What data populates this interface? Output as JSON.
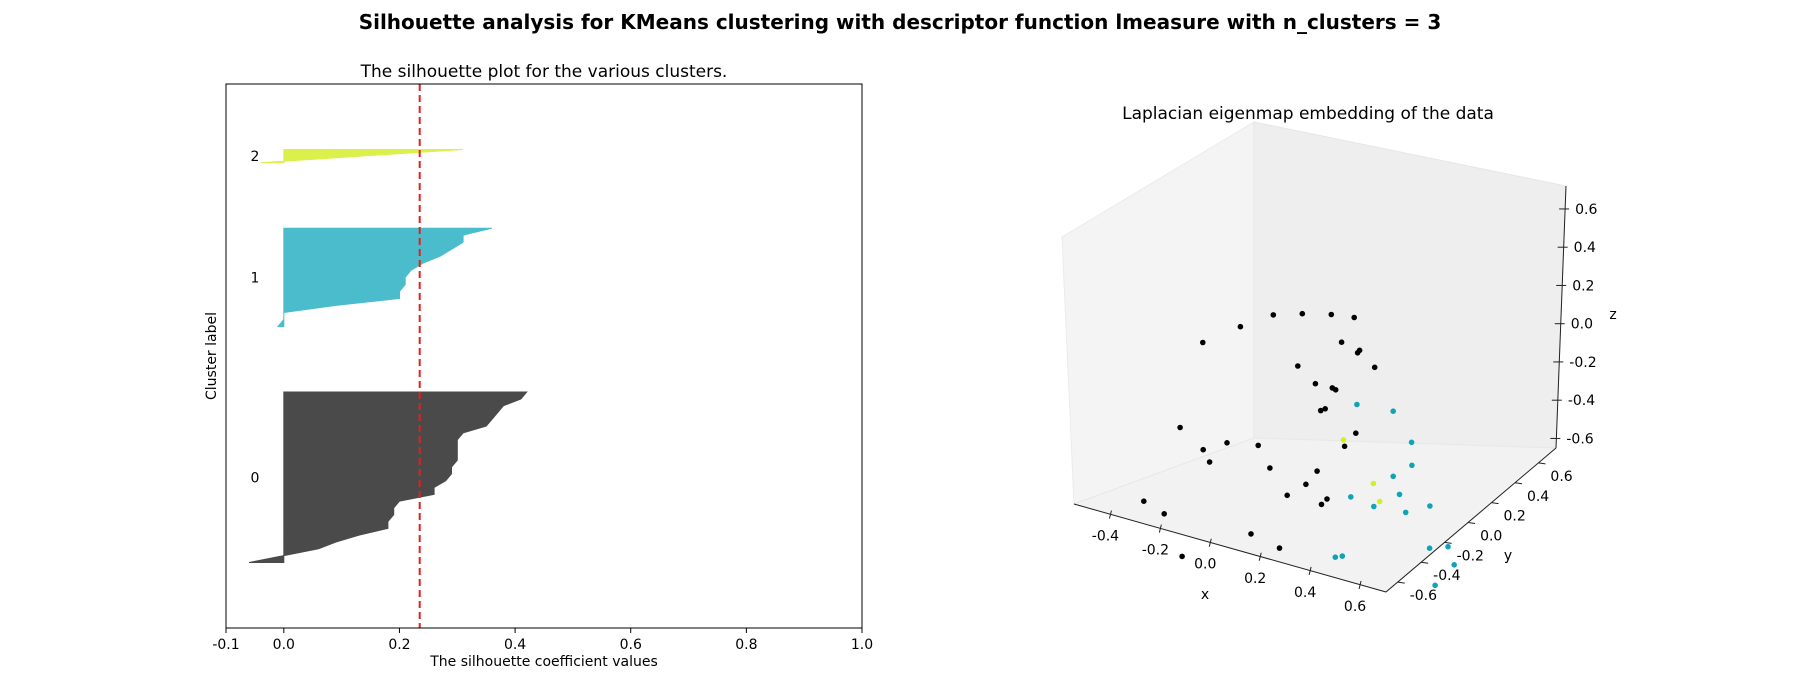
{
  "figure": {
    "suptitle": "Silhouette analysis for KMeans clustering with descriptor function lmeasure with n_clusters = 3"
  },
  "chart_data": [
    {
      "type": "area",
      "title": "The silhouette plot for the various clusters.",
      "xlabel": "The silhouette coefficient values",
      "ylabel": "Cluster label",
      "xlim": [
        -0.1,
        1.0
      ],
      "xticks": [
        "-0.1",
        "0.0",
        "0.2",
        "0.4",
        "0.6",
        "0.8",
        "1.0"
      ],
      "average_silhouette_score": 0.235,
      "average_line_color": "#e32020",
      "clusters": [
        {
          "label": "0",
          "color": "#4a4a4a",
          "sorted_silhouette_values": [
            0.42,
            0.41,
            0.38,
            0.37,
            0.36,
            0.35,
            0.31,
            0.3,
            0.3,
            0.3,
            0.3,
            0.29,
            0.29,
            0.28,
            0.26,
            0.26,
            0.2,
            0.19,
            0.19,
            0.18,
            0.18,
            0.13,
            0.09,
            0.06,
            0.0,
            -0.06
          ]
        },
        {
          "label": "1",
          "color": "#4bbccc",
          "sorted_silhouette_values": [
            0.36,
            0.31,
            0.31,
            0.29,
            0.27,
            0.24,
            0.22,
            0.21,
            0.21,
            0.2,
            0.2,
            0.09,
            0.0,
            0.0,
            -0.01
          ]
        },
        {
          "label": "2",
          "color": "#dbf04b",
          "sorted_silhouette_values": [
            0.31,
            -0.04
          ]
        }
      ]
    },
    {
      "type": "scatter",
      "title": "Laplacian eigenmap embedding of the data",
      "xlabel": "x",
      "ylabel": "y",
      "zlabel": "z",
      "xlim": [
        -0.55,
        0.7
      ],
      "ylim": [
        -0.7,
        0.75
      ],
      "zlim": [
        -0.65,
        0.72
      ],
      "xticks": [
        "-0.4",
        "-0.2",
        "0.0",
        "0.2",
        "0.4",
        "0.6"
      ],
      "yticks": [
        "-0.6",
        "-0.4",
        "-0.2",
        "0.0",
        "0.2",
        "0.4",
        "0.6"
      ],
      "zticks": [
        "-0.6",
        "-0.4",
        "-0.2",
        "0.0",
        "0.2",
        "0.4",
        "0.6"
      ],
      "series": [
        {
          "color": "#000000",
          "points": [
            {
              "x": -0.34,
              "y": -0.2,
              "z": 0.42
            },
            {
              "x": -0.27,
              "y": -0.03,
              "z": 0.44
            },
            {
              "x": -0.2,
              "y": 0.1,
              "z": 0.46
            },
            {
              "x": -0.13,
              "y": 0.2,
              "z": 0.44
            },
            {
              "x": -0.06,
              "y": 0.3,
              "z": 0.41
            },
            {
              "x": 0.0,
              "y": 0.37,
              "z": 0.38
            },
            {
              "x": -0.46,
              "y": -0.4,
              "z": -0.35
            },
            {
              "x": -0.4,
              "y": -0.35,
              "z": -0.42
            },
            {
              "x": -0.3,
              "y": -0.25,
              "z": -0.1
            },
            {
              "x": -0.25,
              "y": -0.3,
              "z": -0.12
            },
            {
              "x": -0.22,
              "y": -0.22,
              "z": -0.05
            },
            {
              "x": -0.15,
              "y": -0.1,
              "z": -0.1
            },
            {
              "x": -0.35,
              "y": -0.35,
              "z": 0.05
            },
            {
              "x": -0.1,
              "y": -0.1,
              "z": -0.2
            },
            {
              "x": -0.05,
              "y": -0.05,
              "z": -0.35
            },
            {
              "x": 0.0,
              "y": 0.0,
              "z": -0.3
            },
            {
              "x": 0.02,
              "y": 0.05,
              "z": -0.25
            },
            {
              "x": 0.05,
              "y": 0.08,
              "z": -0.4
            },
            {
              "x": -0.12,
              "y": -0.2,
              "z": -0.5
            },
            {
              "x": -0.3,
              "y": -0.4,
              "z": -0.58
            },
            {
              "x": -0.05,
              "y": -0.1,
              "z": -0.6
            },
            {
              "x": 0.02,
              "y": 0.1,
              "z": 0.05
            },
            {
              "x": 0.05,
              "y": 0.12,
              "z": 0.15
            },
            {
              "x": 0.0,
              "y": 0.05,
              "z": 0.2
            },
            {
              "x": -0.05,
              "y": 0.0,
              "z": 0.3
            },
            {
              "x": 0.0,
              "y": 0.2,
              "z": 0.1
            },
            {
              "x": 0.08,
              "y": 0.15,
              "z": -0.15
            },
            {
              "x": 0.1,
              "y": 0.2,
              "z": -0.1
            },
            {
              "x": -0.02,
              "y": 0.15,
              "z": 0.0
            },
            {
              "x": 0.05,
              "y": 0.3,
              "z": 0.25
            },
            {
              "x": 0.08,
              "y": 0.25,
              "z": 0.3
            },
            {
              "x": 0.03,
              "y": 0.2,
              "z": 0.35
            },
            {
              "x": 0.12,
              "y": 0.3,
              "z": 0.2
            },
            {
              "x": 0.02,
              "y": 0.1,
              "z": -0.45
            }
          ]
        },
        {
          "color": "#0fa3b8",
          "points": [
            {
              "x": 0.1,
              "y": 0.2,
              "z": 0.05
            },
            {
              "x": 0.2,
              "y": 0.3,
              "z": 0.0
            },
            {
              "x": 0.3,
              "y": 0.1,
              "z": -0.2
            },
            {
              "x": 0.35,
              "y": 0.05,
              "z": -0.25
            },
            {
              "x": 0.4,
              "y": 0.0,
              "z": -0.3
            },
            {
              "x": 0.45,
              "y": 0.1,
              "z": -0.3
            },
            {
              "x": 0.5,
              "y": 0.0,
              "z": -0.45
            },
            {
              "x": 0.55,
              "y": 0.05,
              "z": -0.45
            },
            {
              "x": 0.6,
              "y": 0.0,
              "z": -0.5
            },
            {
              "x": 0.55,
              "y": -0.05,
              "z": -0.6
            },
            {
              "x": 0.2,
              "y": -0.1,
              "z": -0.55
            },
            {
              "x": 0.15,
              "y": -0.05,
              "z": -0.6
            },
            {
              "x": 0.25,
              "y": 0.05,
              "z": -0.35
            },
            {
              "x": 0.18,
              "y": 0.0,
              "z": -0.3
            },
            {
              "x": 0.35,
              "y": 0.15,
              "z": -0.15
            },
            {
              "x": 0.3,
              "y": 0.25,
              "z": -0.1
            }
          ]
        },
        {
          "color": "#d5f01f",
          "points": [
            {
              "x": 0.12,
              "y": 0.05,
              "z": -0.05
            },
            {
              "x": 0.2,
              "y": 0.15,
              "z": -0.3
            },
            {
              "x": 0.25,
              "y": 0.1,
              "z": -0.35
            }
          ]
        }
      ]
    }
  ]
}
